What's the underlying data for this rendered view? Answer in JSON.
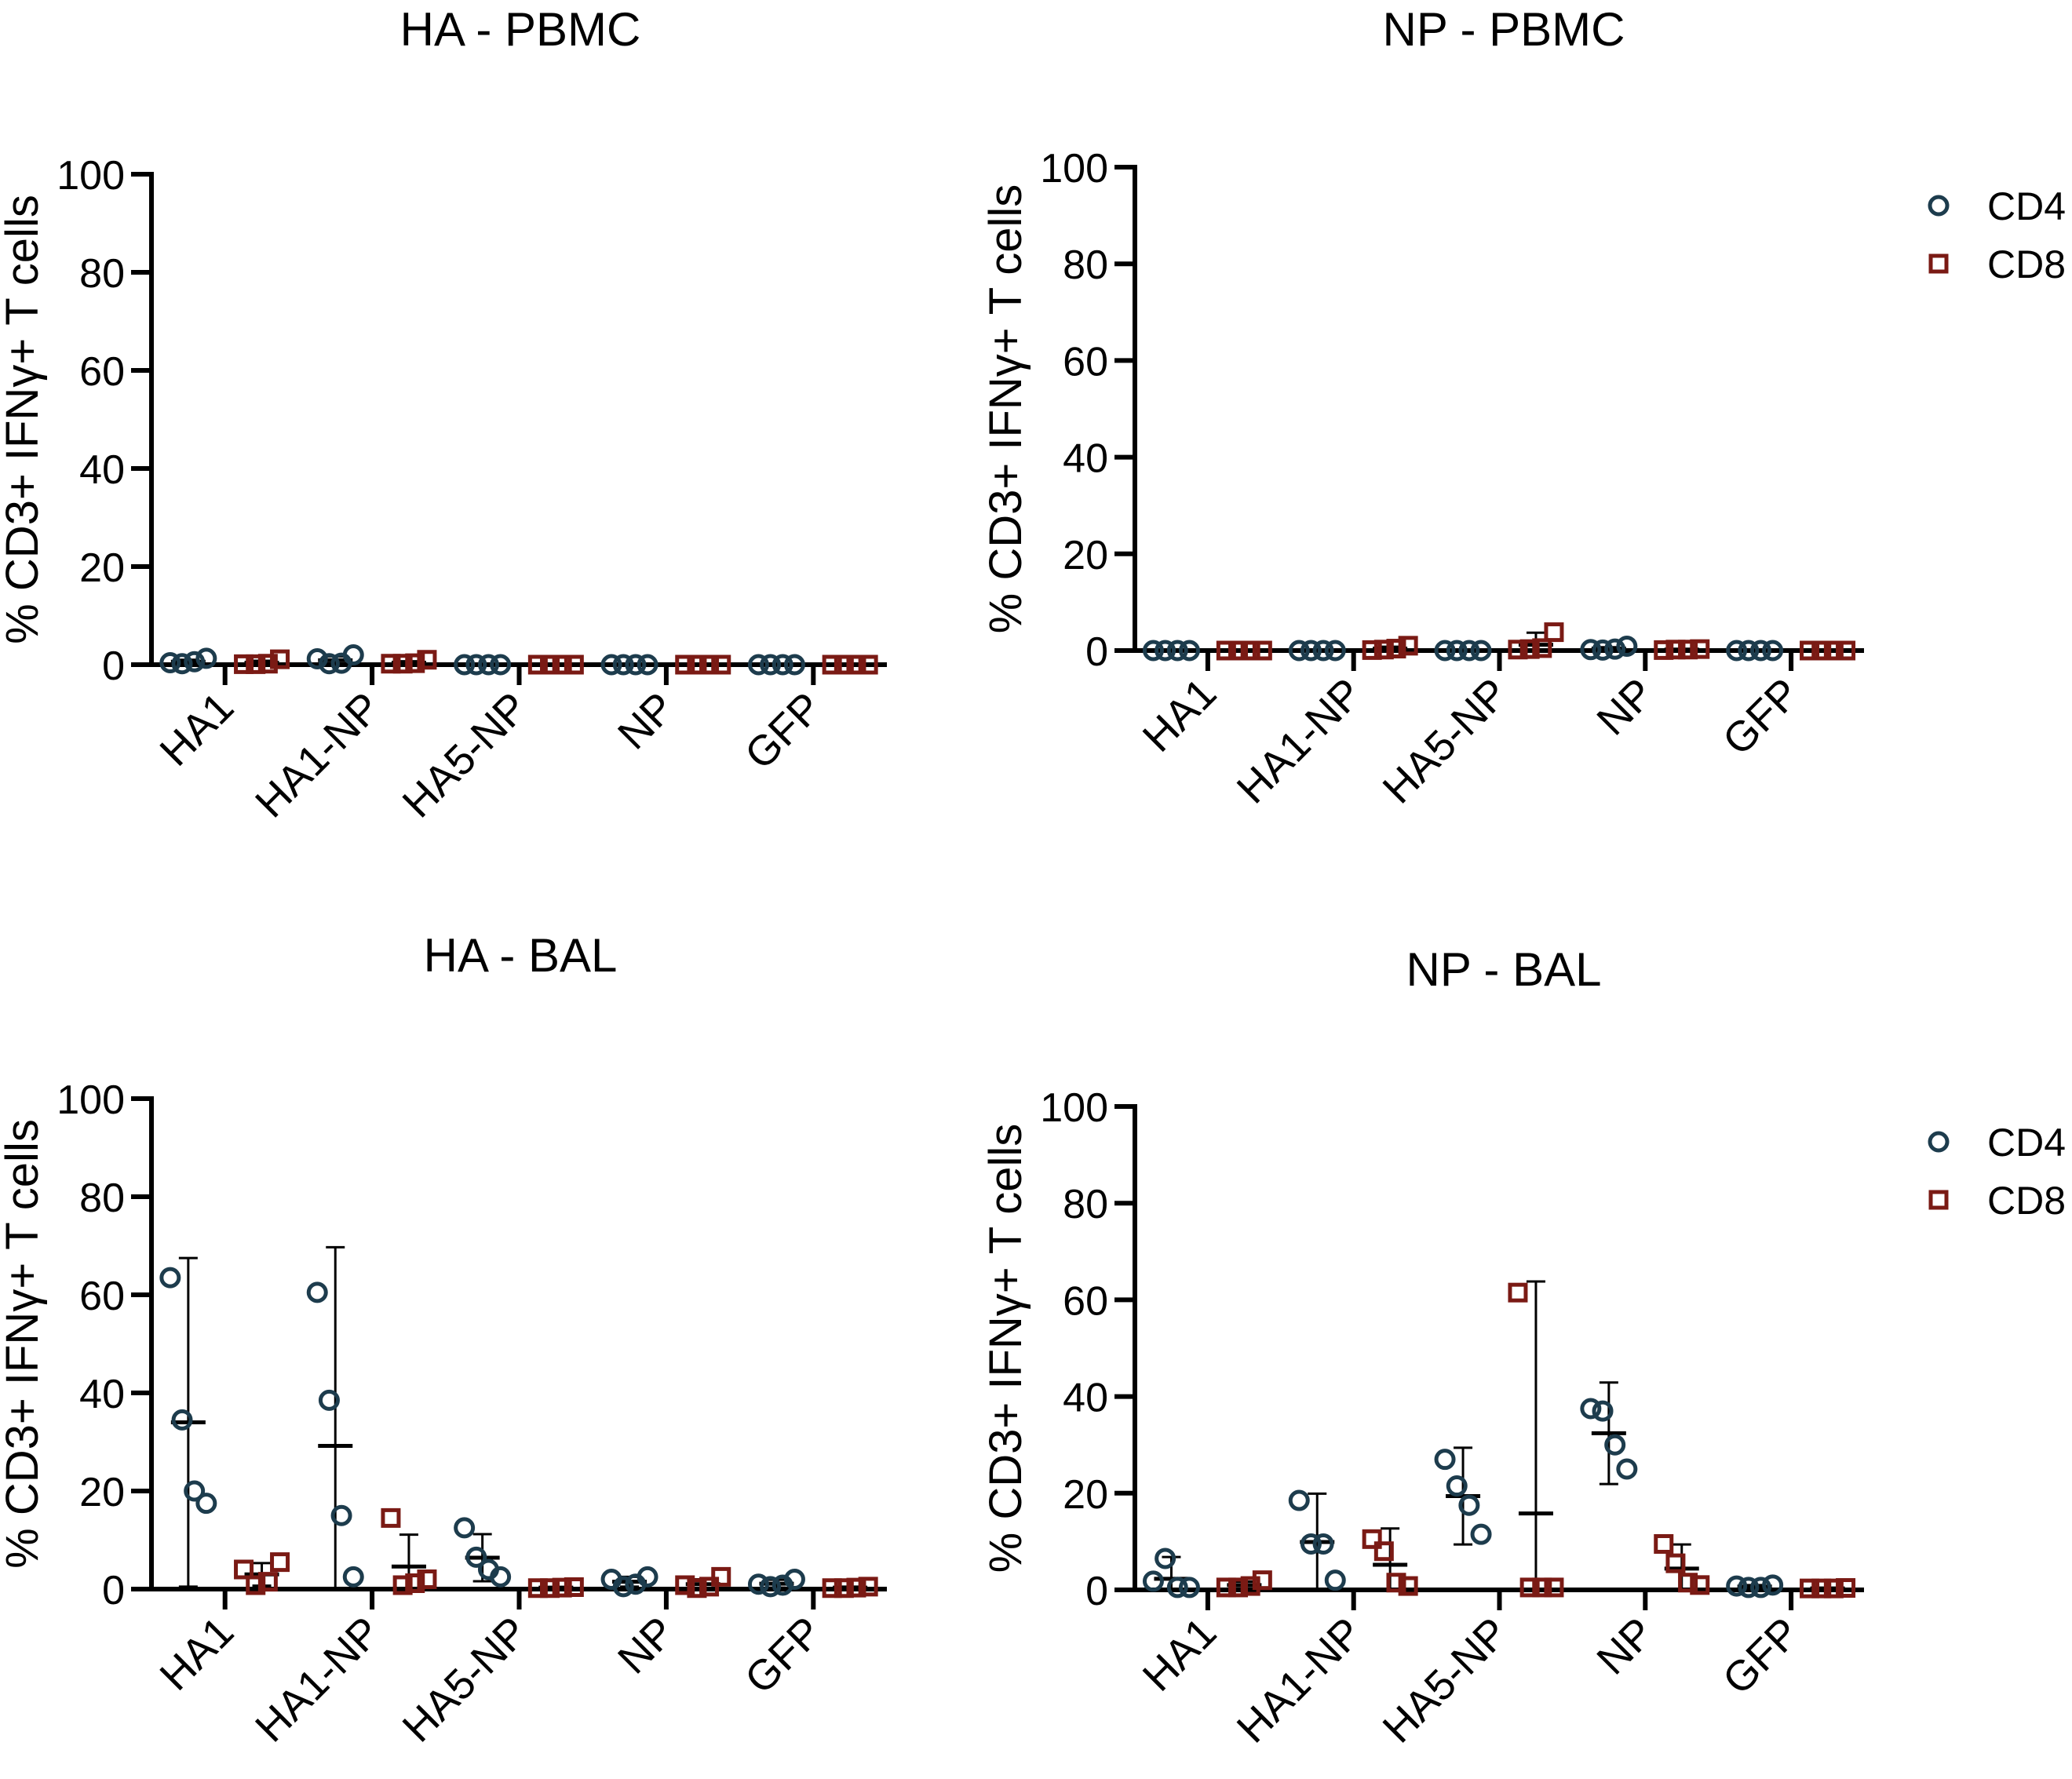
{
  "figure": {
    "legend": {
      "entries": [
        {
          "label": "CD4",
          "marker": "circle-icon",
          "color": "#1d3c4d"
        },
        {
          "label": "CD8",
          "marker": "square-icon",
          "color": "#7a1a14"
        }
      ]
    },
    "colors": {
      "cd4": "#1d3c4d",
      "cd8": "#7a1a14",
      "axis": "#000000"
    }
  },
  "chart_data": [
    {
      "type": "scatter",
      "title": "HA - PBMC",
      "ylabel": "% CD3+ IFNγ+ T cells",
      "xlabel": "",
      "ylim": [
        0,
        100
      ],
      "yticks": [
        0,
        20,
        40,
        60,
        80,
        100
      ],
      "categories": [
        "HA1",
        "HA1-NP",
        "HA5-NP",
        "NP",
        "GFP"
      ],
      "legend": false,
      "series": [
        {
          "name": "CD4",
          "marker": "circle",
          "points": [
            [
              0.4,
              0.2,
              0.6,
              1.3
            ],
            [
              1.2,
              0.2,
              0.3,
              2.0
            ],
            [
              0,
              0,
              0,
              0
            ],
            [
              0,
              0,
              0,
              0
            ],
            [
              0,
              0,
              0,
              0
            ]
          ],
          "mean": [
            0.6,
            0.9,
            0,
            0,
            0
          ],
          "err": [
            0.4,
            0.8,
            0,
            0,
            0
          ]
        },
        {
          "name": "CD8",
          "marker": "square",
          "points": [
            [
              0.1,
              0.1,
              0.2,
              1.1
            ],
            [
              0.2,
              0.2,
              0.3,
              1.0
            ],
            [
              0,
              0,
              0,
              0
            ],
            [
              0,
              0,
              0,
              0
            ],
            [
              0,
              0,
              0,
              0
            ]
          ],
          "mean": [
            0.4,
            0.4,
            0,
            0,
            0
          ],
          "err": [
            0.4,
            0.3,
            0,
            0,
            0
          ]
        }
      ]
    },
    {
      "type": "scatter",
      "title": "NP - PBMC",
      "ylabel": "% CD3+ IFNγ+ T cells",
      "xlabel": "",
      "ylim": [
        0,
        100
      ],
      "yticks": [
        0,
        20,
        40,
        60,
        80,
        100
      ],
      "categories": [
        "HA1",
        "HA1-NP",
        "HA5-NP",
        "NP",
        "GFP"
      ],
      "legend": true,
      "series": [
        {
          "name": "CD4",
          "marker": "circle",
          "points": [
            [
              0,
              0,
              0,
              0
            ],
            [
              0,
              0,
              0,
              0
            ],
            [
              0,
              0,
              0,
              0
            ],
            [
              0.2,
              0.1,
              0.3,
              0.9
            ],
            [
              0,
              0,
              0,
              0
            ]
          ],
          "mean": [
            0,
            0,
            0,
            0.4,
            0
          ],
          "err": [
            0,
            0,
            0,
            0.3,
            0
          ]
        },
        {
          "name": "CD8",
          "marker": "square",
          "points": [
            [
              0,
              0,
              0,
              0
            ],
            [
              0.1,
              0.2,
              0.4,
              1.0
            ],
            [
              0.2,
              0.3,
              0.5,
              3.8
            ],
            [
              0.1,
              0.2,
              0.2,
              0.3
            ],
            [
              0,
              0,
              0,
              0
            ]
          ],
          "mean": [
            0,
            0.4,
            1.2,
            0.2,
            0
          ],
          "err": [
            0,
            0.4,
            2.5,
            0.1,
            0
          ]
        }
      ]
    },
    {
      "type": "scatter",
      "title": "HA - BAL",
      "ylabel": "% CD3+ IFNγ+ T cells",
      "xlabel": "",
      "ylim": [
        0,
        100
      ],
      "yticks": [
        0,
        20,
        40,
        60,
        80,
        100
      ],
      "categories": [
        "HA1",
        "HA1-NP",
        "HA5-NP",
        "NP",
        "GFP"
      ],
      "legend": false,
      "series": [
        {
          "name": "CD4",
          "marker": "circle",
          "points": [
            [
              63.5,
              34.5,
              20.0,
              17.5
            ],
            [
              60.5,
              38.5,
              15.0,
              2.5
            ],
            [
              12.5,
              6.5,
              4.0,
              2.5
            ],
            [
              2.0,
              0.5,
              1.0,
              2.5
            ],
            [
              1.0,
              0.5,
              0.8,
              2.0
            ]
          ],
          "mean": [
            34.0,
            29.2,
            6.4,
            1.5,
            1.1
          ],
          "err": [
            33.5,
            40.5,
            4.8,
            1.0,
            0.8
          ]
        },
        {
          "name": "CD8",
          "marker": "square",
          "points": [
            [
              4.0,
              0.8,
              1.5,
              5.5
            ],
            [
              14.5,
              0.8,
              1.2,
              2.0
            ],
            [
              0.2,
              0.2,
              0.3,
              0.4
            ],
            [
              0.8,
              0.2,
              0.5,
              2.5
            ],
            [
              0.2,
              0.2,
              0.3,
              0.5
            ]
          ],
          "mean": [
            3.0,
            4.6,
            0.3,
            1.0,
            0.3
          ],
          "err": [
            2.3,
            6.5,
            0.1,
            1.0,
            0.2
          ]
        }
      ]
    },
    {
      "type": "scatter",
      "title": "NP - BAL",
      "ylabel": "% CD3+ IFNγ+ T cells",
      "xlabel": "",
      "ylim": [
        0,
        100
      ],
      "yticks": [
        0,
        20,
        40,
        60,
        80,
        100
      ],
      "categories": [
        "HA1",
        "HA1-NP",
        "HA5-NP",
        "NP",
        "GFP"
      ],
      "legend": true,
      "series": [
        {
          "name": "CD4",
          "marker": "circle",
          "points": [
            [
              1.8,
              6.5,
              0.5,
              0.5
            ],
            [
              18.5,
              9.5,
              9.5,
              2.0
            ],
            [
              27.0,
              21.5,
              17.5,
              11.5
            ],
            [
              37.5,
              37.0,
              30.0,
              25.0
            ],
            [
              0.8,
              0.5,
              0.5,
              1.0
            ]
          ],
          "mean": [
            2.3,
            9.9,
            19.4,
            32.4,
            0.7
          ],
          "err": [
            4.5,
            10.0,
            10.0,
            10.5,
            0.3
          ]
        },
        {
          "name": "CD8",
          "marker": "square",
          "points": [
            [
              0.5,
              0.5,
              0.8,
              2.0
            ],
            [
              10.5,
              8.0,
              1.5,
              0.8
            ],
            [
              61.5,
              0.5,
              0.5,
              0.5
            ],
            [
              9.5,
              5.5,
              1.5,
              1.0
            ],
            [
              0.3,
              0.3,
              0.3,
              0.4
            ]
          ],
          "mean": [
            1.0,
            5.2,
            15.8,
            4.4,
            0.3
          ],
          "err": [
            0.7,
            7.5,
            48.0,
            5.0,
            0.1
          ]
        }
      ]
    }
  ]
}
